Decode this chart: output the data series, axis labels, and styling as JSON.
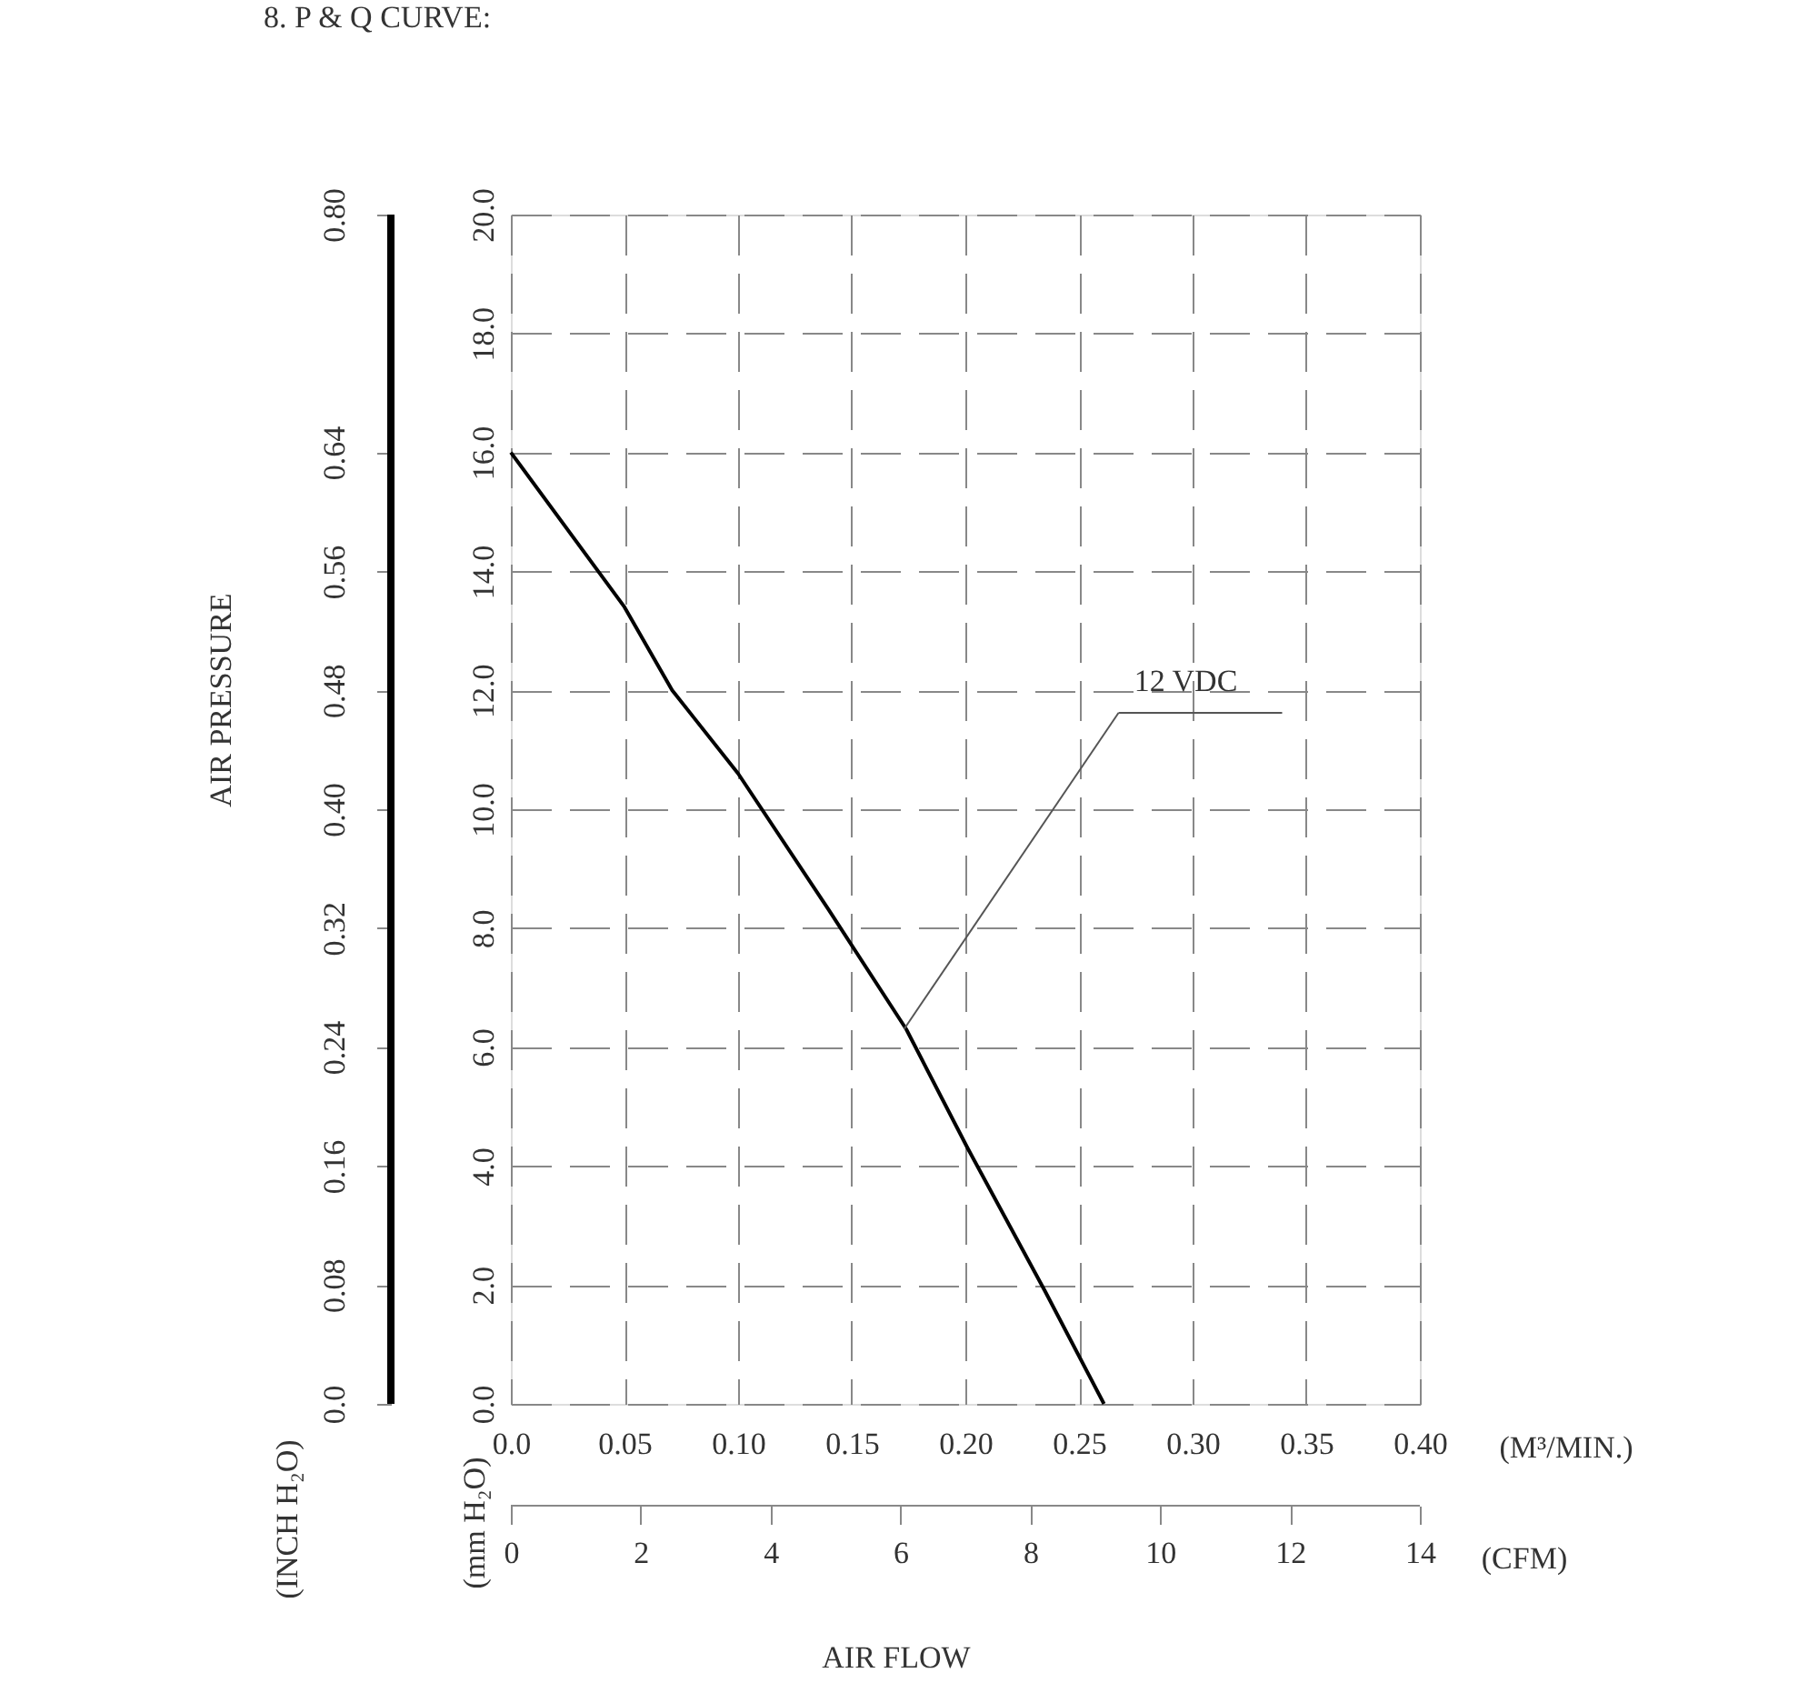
{
  "chart_data": {
    "type": "line",
    "title": "8. P & Q CURVE:",
    "xlabel": "(M³/MIN.)",
    "x2label": "(CFM)",
    "ylabel": "(mm H₂O)",
    "y2label": "(INCH H₂O)",
    "x": [
      0,
      0.05,
      0.071,
      0.1,
      0.14,
      0.174,
      0.201,
      0.235,
      0.261
    ],
    "series": [
      {
        "color": "#000000",
        "values": [
          16.0,
          13.4,
          12.0,
          10.6,
          8.3,
          6.3,
          4.3,
          1.9,
          0
        ]
      }
    ],
    "xlim": [
      0,
      0.4
    ],
    "xticks": [
      {
        "value": 0,
        "label": "0.0"
      },
      0.05,
      {
        "value": 0.1,
        "label": "0.10"
      },
      0.15,
      {
        "value": 0.2,
        "label": "0.20"
      },
      0.25,
      {
        "value": 0.3,
        "label": "0.30"
      },
      0.35,
      {
        "value": 0.4,
        "label": "0.40"
      }
    ],
    "x2lim": [
      0,
      14
    ],
    "x2ticks": [
      0,
      2,
      4,
      6,
      8,
      10,
      12,
      14
    ],
    "ylim": [
      0,
      20
    ],
    "yticks": [
      {
        "value": 0,
        "label": "0.0"
      },
      {
        "value": 2,
        "label": "2.0"
      },
      {
        "value": 4,
        "label": "4.0"
      },
      {
        "value": 6,
        "label": "6.0"
      },
      {
        "value": 8,
        "label": "8.0"
      },
      {
        "value": 10,
        "label": "10.0"
      },
      {
        "value": 12,
        "label": "12.0"
      },
      {
        "value": 14,
        "label": "14.0"
      },
      {
        "value": 16,
        "label": "16.0"
      },
      {
        "value": 18,
        "label": "18.0"
      },
      {
        "value": 20,
        "label": "20.0"
      }
    ],
    "y2lim": [
      0,
      0.8
    ],
    "y2ticks": [
      {
        "value": 0,
        "label": "0.0"
      },
      0.08,
      0.16,
      0.24,
      0.32,
      {
        "value": 0.4,
        "label": "0.40"
      },
      0.48,
      0.56,
      0.64,
      {
        "value": 0.8,
        "label": "0.80"
      }
    ],
    "grid": true,
    "line_style": "solid",
    "annotations": [
      {
        "text": "12 VDC",
        "x": 0.173,
        "y": 6.3
      },
      "AIR PRESSURE",
      "AIR FLOW"
    ]
  }
}
